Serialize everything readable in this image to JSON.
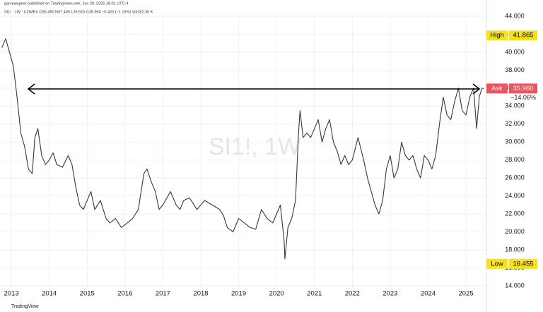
{
  "header": {
    "publisher": "garyswagner published on TradingView.com, Jun 20, 2025 18:01 UTC-4",
    "symbol_line": "SI1! · 1W · COMEX  O36.450 H37.405 L35.515 C35.960 −0.420 (−1.15%) Vol282.35 K"
  },
  "watermark": "SI1!, 1W",
  "footer": "TradingView",
  "chart_data": {
    "type": "line",
    "color": "#2f3a44",
    "x": [
      2012.75,
      2012.85,
      2012.95,
      2013.05,
      2013.15,
      2013.25,
      2013.35,
      2013.45,
      2013.55,
      2013.62,
      2013.7,
      2013.8,
      2013.9,
      2014.0,
      2014.1,
      2014.2,
      2014.35,
      2014.5,
      2014.6,
      2014.7,
      2014.8,
      2014.9,
      2015.0,
      2015.1,
      2015.2,
      2015.35,
      2015.5,
      2015.6,
      2015.75,
      2015.9,
      2016.0,
      2016.2,
      2016.35,
      2016.5,
      2016.58,
      2016.7,
      2016.8,
      2016.9,
      2017.0,
      2017.2,
      2017.35,
      2017.45,
      2017.55,
      2017.7,
      2017.9,
      2018.1,
      2018.3,
      2018.5,
      2018.6,
      2018.7,
      2018.85,
      2019.0,
      2019.15,
      2019.3,
      2019.45,
      2019.6,
      2019.75,
      2019.9,
      2020.0,
      2020.1,
      2020.2,
      2020.22,
      2020.3,
      2020.4,
      2020.5,
      2020.58,
      2020.62,
      2020.7,
      2020.8,
      2020.9,
      2021.0,
      2021.1,
      2021.2,
      2021.3,
      2021.4,
      2021.5,
      2021.6,
      2021.7,
      2021.8,
      2021.9,
      2022.0,
      2022.15,
      2022.3,
      2022.4,
      2022.5,
      2022.6,
      2022.7,
      2022.8,
      2022.9,
      2023.0,
      2023.1,
      2023.2,
      2023.3,
      2023.4,
      2023.5,
      2023.6,
      2023.7,
      2023.8,
      2023.9,
      2024.0,
      2024.1,
      2024.2,
      2024.3,
      2024.4,
      2024.5,
      2024.6,
      2024.7,
      2024.8,
      2024.9,
      2025.0,
      2025.1,
      2025.2,
      2025.28,
      2025.35,
      2025.42,
      2025.47
    ],
    "values": [
      40.5,
      41.5,
      40,
      38.5,
      35,
      31,
      29.5,
      27,
      26.5,
      30.5,
      31.5,
      28.5,
      27.5,
      28,
      28.8,
      27.5,
      27.2,
      28.5,
      27.5,
      25,
      23,
      22.5,
      23.5,
      24.5,
      22.5,
      23.5,
      21.5,
      21,
      21.5,
      20.5,
      20.8,
      21.5,
      22.5,
      26.5,
      27,
      25.5,
      24.5,
      22.5,
      23,
      24.5,
      23,
      22.5,
      23.5,
      23.8,
      22.5,
      23.5,
      23,
      22.5,
      21.8,
      20.5,
      20,
      21.5,
      21,
      20.5,
      20.3,
      22.5,
      21.5,
      21,
      22,
      23,
      19,
      17,
      20.5,
      21.5,
      23.5,
      31,
      33.5,
      30.5,
      31,
      30.5,
      31.5,
      32.5,
      30,
      31.5,
      32.5,
      30,
      29,
      27.5,
      28.5,
      27.5,
      28,
      30.5,
      28,
      26,
      24.5,
      23,
      22,
      23.5,
      27,
      28.5,
      26,
      27,
      30,
      28.5,
      28,
      28.5,
      27,
      26,
      28.5,
      28,
      27,
      28.5,
      32,
      35,
      33,
      32.5,
      34.5,
      36,
      33.5,
      33,
      35,
      36,
      31.5,
      35,
      36,
      35.96
    ],
    "xlim": [
      2012.7,
      2025.54
    ],
    "xticks": [
      2013,
      2014,
      2015,
      2016,
      2017,
      2018,
      2019,
      2020,
      2021,
      2022,
      2023,
      2024,
      2025
    ],
    "ylim": [
      14,
      44
    ],
    "yticks": [
      {
        "value": 14,
        "label": "14.000"
      },
      {
        "value": 16,
        "label": "16.000"
      },
      {
        "value": 18,
        "label": "18.000"
      },
      {
        "value": 20,
        "label": "20.000"
      },
      {
        "value": 22,
        "label": "22.000"
      },
      {
        "value": 24,
        "label": "24.000"
      },
      {
        "value": 26,
        "label": "26.000"
      },
      {
        "value": 28,
        "label": "28.000"
      },
      {
        "value": 30,
        "label": "30.000"
      },
      {
        "value": 32,
        "label": "32.000"
      },
      {
        "value": 34,
        "label": "34.000"
      },
      {
        "value": 36,
        "label": "36.000"
      },
      {
        "value": 38,
        "label": "38.000"
      },
      {
        "value": 40,
        "label": "40.000"
      },
      {
        "value": 42,
        "label": "42.000"
      },
      {
        "value": 44,
        "label": "44.000"
      }
    ],
    "grid": true,
    "markers": [
      {
        "label": "High",
        "value": 41.865,
        "color": "#f7e313",
        "text_color": "#000000"
      },
      {
        "label": "Low",
        "value": 16.455,
        "color": "#f7e313",
        "text_color": "#000000"
      },
      {
        "label": "Ask",
        "value": 35.96,
        "value_label": "35.960",
        "color": "#f0525e",
        "text_color": "#ffffff",
        "change_label": "−14.06%"
      }
    ]
  }
}
